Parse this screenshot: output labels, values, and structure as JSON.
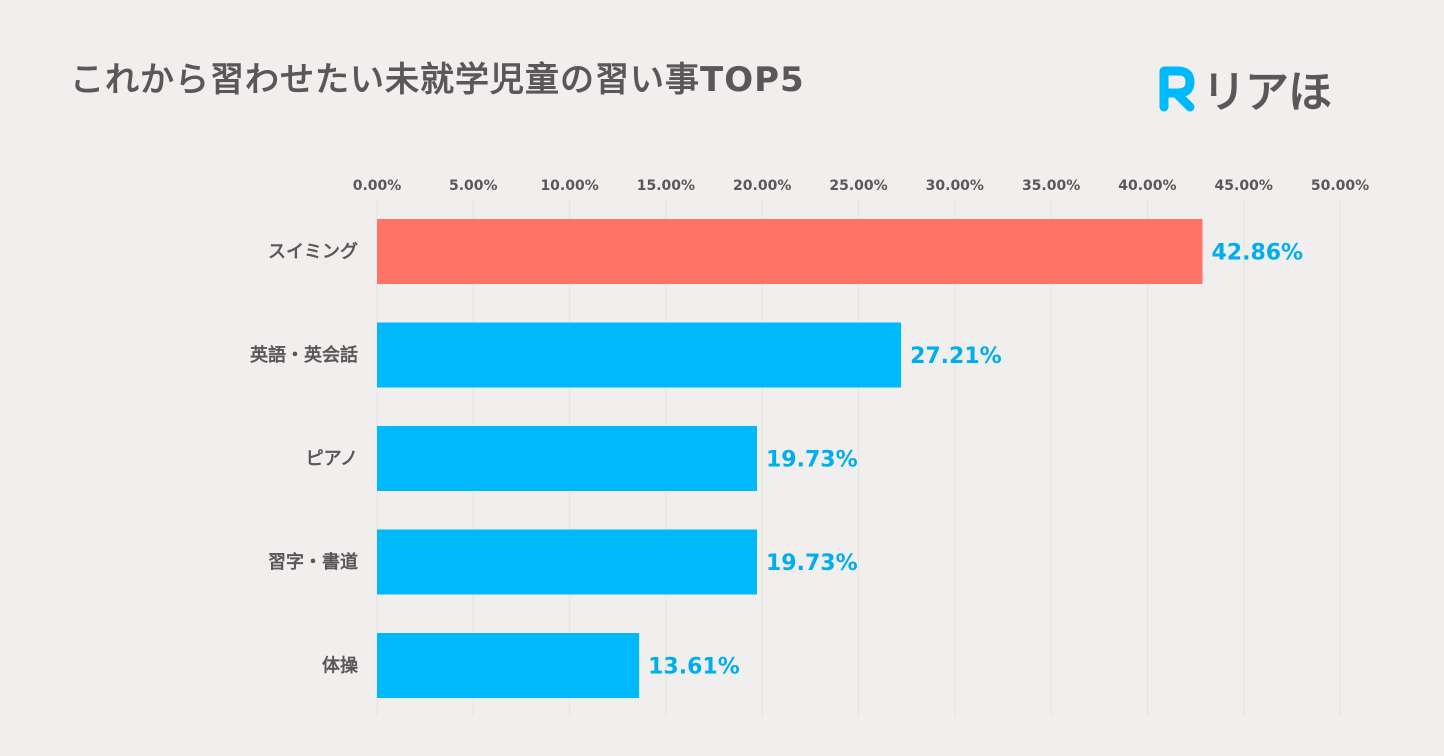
{
  "header": {
    "title": "これから習わせたい未就学児童の習い事TOP5",
    "brand_name": "リアほ",
    "brand_mark_letter": "R"
  },
  "colors": {
    "background": "#f0efed",
    "highlight_bar": "#ff7369",
    "bar": "#00b9fa",
    "value_text": "#00aef0",
    "text": "#595757",
    "gridline": "#e4e3e1"
  },
  "chart_data": {
    "type": "bar",
    "orientation": "horizontal",
    "title": "これから習わせたい未就学児童の習い事TOP5",
    "categories": [
      "スイミング",
      "英語・英会話",
      "ピアノ",
      "習字・書道",
      "体操"
    ],
    "values": [
      42.86,
      27.21,
      19.73,
      19.73,
      13.61
    ],
    "value_labels": [
      "42.86%",
      "27.21%",
      "19.73%",
      "19.73%",
      "13.61%"
    ],
    "highlight_index": 0,
    "xlim": [
      0,
      50
    ],
    "xticks": [
      0,
      5,
      10,
      15,
      20,
      25,
      30,
      35,
      40,
      45,
      50
    ],
    "xtick_labels": [
      "0.00%",
      "5.00%",
      "10.00%",
      "15.00%",
      "20.00%",
      "25.00%",
      "30.00%",
      "35.00%",
      "40.00%",
      "45.00%",
      "50.00%"
    ],
    "xaxis_position": "top",
    "grid": true
  }
}
